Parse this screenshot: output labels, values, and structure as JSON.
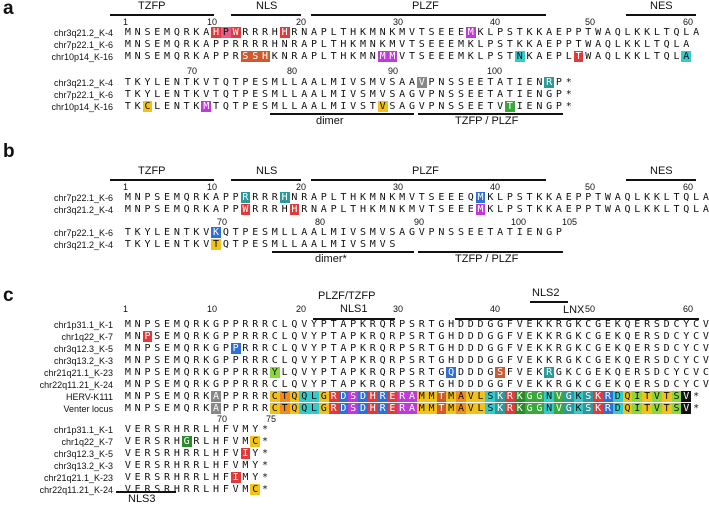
{
  "panels": {
    "a": {
      "letter": "a",
      "domains": [
        "TZFP",
        "NLS",
        "PLZF",
        "NES",
        "dimer",
        "TZFP / PLZF"
      ],
      "ruler_top": [
        "1",
        "10",
        "20",
        "30",
        "40",
        "50",
        "60"
      ],
      "ruler_bot": [
        "70",
        "80",
        "90",
        "100"
      ],
      "names_top": [
        "chr3q21.2_K-4",
        "chr7p22.1_K-6",
        "chr10p14_K-16"
      ],
      "names_bot": [
        "chr3q21.2_K-4",
        "chr7p22.1_K-6",
        "chr10p14_K-16"
      ],
      "seqs_top": [
        "MNSEMQRKAHPWRRRHHRNAPLTHKMNKMVTSEEEMKLPSTKKAEPPTWAQLKKLTQLA",
        "MNSEMQRKAPPRRRRHNRAPLTHKMNKMVTSEEEMKLPSTKKAEPPTWAQLKKLTQLA",
        "MNSEMQRKAPPRSSHKNRAPLTHKMNMMVTSEEEMKLPSTNKAEPLTWAQLKKLTQLA"
      ],
      "seqs_bot": [
        "TKYLENTKVTQTPESMLLAALMIVSMVSAAVPNSSEETATIENRP*",
        "TKYLENTKVTQTPESMLLAALMIVSMVSAGVPNSSEETATIENGP*",
        "TKCLENTKMTQTPESMLLAALMIVSTVSAGVPNSSEETVTIENGP*"
      ]
    },
    "b": {
      "letter": "b",
      "domains": [
        "TZFP",
        "NLS",
        "PLZF",
        "NES",
        "dimer*",
        "TZFP / PLZF"
      ],
      "ruler_top": [
        "1",
        "10",
        "20",
        "30",
        "40",
        "50",
        "60"
      ],
      "ruler_bot": [
        "70",
        "80",
        "90",
        "100",
        "105"
      ],
      "names_top": [
        "chr7p22.1_K-6",
        "chr3q21.2_K-4"
      ],
      "names_bot": [
        "chr7p22.1_K-6",
        "chr3q21.2_K-4"
      ],
      "seqs_top": [
        "MNPSEMQRKAPPRRRRHNRAPLTHKMNKMVTSEEEQMKLPSTKKAEPPTWAQLKKLTQLA",
        "MNPSEMQRKAPPWRRRHHRNAPLTHKMNKMVTSEEEMKLPSTKKAEPPTWAQLKKLTQLA"
      ],
      "seqs_bot": [
        "TKYLENTKVKQTPESMLLAALMIVSMVSAGVPNSSEETATIENGP",
        "TKYLENTKVTQTPESMLLAALMIVSMVS"
      ]
    },
    "c": {
      "letter": "c",
      "domains": [
        "PLZF/TZFP",
        "NLS1",
        "NLS2",
        "LNX",
        "NLS3"
      ],
      "ruler_top": [
        "1",
        "10",
        "20",
        "30",
        "40",
        "50",
        "60"
      ],
      "ruler_bot": [
        "70",
        "75"
      ],
      "names_top": [
        "chr1p31.1_K-1",
        "chr1q22_K-7",
        "chr3q12.3_K-5",
        "chr3q13.2_K-3",
        "chr21q21.1_K-23",
        "chr22q11.21_K-24",
        "HERV-K111",
        "Venter locus"
      ],
      "names_bot": [
        "chr1p31.1_K-1",
        "chr1q22_K-7",
        "chr3q12.3_K-5",
        "chr3q13.2_K-3",
        "chr21q21.1_K-23",
        "chr22q11.21_K-24"
      ],
      "seqs_top": [
        "MNPSEMQRKGPPRRRCLQVYPTAPKRQRPSRTGHDDDGGFVEKKRGKCGEKQERSDCYCVC",
        "MNPSEMQRKGPPRRRCLQVYPTAPKRQRPSRTGHDDDGGFVEKKRGKCGEKQERSDCYCVC",
        "MNPSEMQRKGPPRRRCLQVYPTAPKRQRPSRTGHDDDGGFVEKKRGKCGEKQERSDCYCVC",
        "MNPSEMQRKGPPRRRCLQVYPTAPKRQRPSRTGHDDDGGFVEKKRGKCGEKQERSDCYCVC",
        "MNPSEMQRKGPPRRRYLQVYPTAPKRQRPSRTGQDDDGSFVEKRGKCGEKQERSDCYCVC",
        "MNPSEMQRKGPPRRRCLQVYPTAPKRQRPSRTGHDDDGGFVEKKRGKCGEKQERSDCYCVC",
        "MNPSEMQRKAPPRRRCTQQLGRDSDHRERAMMTMAVLSKRKGGNVGKSKRDQITVTSV*",
        "MNPSEMQRKAPPRRRCTQQLGRDSDHRERAMMTMAVLSKRKGGNVGKSKRDQITVTSV*"
      ],
      "seqs_bot": [
        "VERSRHRRLHFVMY*",
        "VERSRHGRLHFVMC*",
        "VERSRHRRLHFVIY*",
        "VERSRHRRLHFVMY*",
        "VERSRHRRLHFIMY*",
        "VERSRHRRLHFVMC*"
      ]
    }
  }
}
